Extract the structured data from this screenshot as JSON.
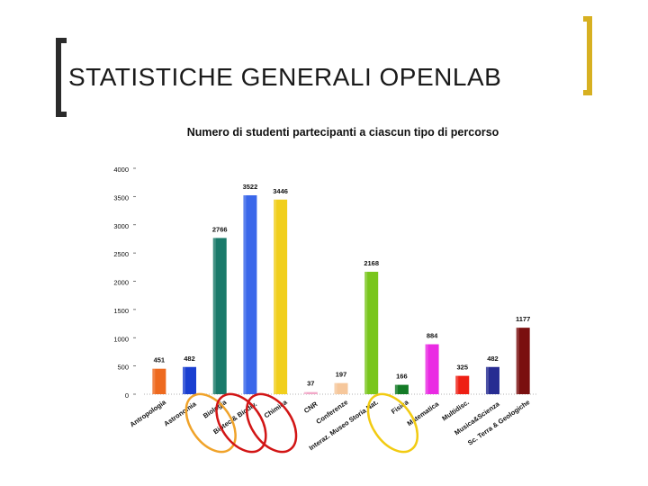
{
  "slide": {
    "title": "STATISTICHE GENERALI OPENLAB"
  },
  "chart_data": {
    "type": "bar",
    "title": "Numero di studenti partecipanti a ciascun tipo di percorso",
    "xlabel": "",
    "ylabel": "",
    "ylim": [
      0,
      4000
    ],
    "yticks": [
      0,
      500,
      1000,
      1500,
      2000,
      2500,
      3000,
      3500,
      4000
    ],
    "ytick_labels": [
      "0",
      "500",
      "1000",
      "1500",
      "2000",
      "2500",
      "3000",
      "3500",
      "4000"
    ],
    "grid": false,
    "categories": [
      "Antropologia",
      "Astronomia",
      "Biologia",
      "Biotec.& Biodiv.",
      "Chimica",
      "CNR",
      "Conferenze",
      "Interaz. Museo Storia Nat.",
      "Fisica",
      "Matematica",
      "Multidisc.",
      "Musica&Scienza",
      "Sc. Terra & Geologiche"
    ],
    "values": [
      451,
      482,
      2766,
      3522,
      3446,
      37,
      197,
      2168,
      166,
      884,
      325,
      482,
      1177
    ],
    "value_labels": [
      "451",
      "482",
      "2766",
      "3522",
      "3446",
      "37",
      "197",
      "2168",
      "166",
      "884",
      "325",
      "482",
      "1177"
    ],
    "bar_colors": [
      "#ee6a1f",
      "#1a3fd1",
      "#1a7a6a",
      "#3a67ea",
      "#f1cf1c",
      "#f2a8c8",
      "#f6c79b",
      "#79c61d",
      "#137b26",
      "#ea2ae3",
      "#ee1f14",
      "#272c92",
      "#7a0f0f"
    ],
    "highlight_circles": [
      {
        "category": "Biologia",
        "color": "#f0a32a"
      },
      {
        "category": "Biotec.& Biodiv.",
        "color": "#d21515"
      },
      {
        "category": "Chimica",
        "color": "#d21515"
      },
      {
        "category": "Fisica",
        "color": "#f2cb12"
      }
    ]
  }
}
